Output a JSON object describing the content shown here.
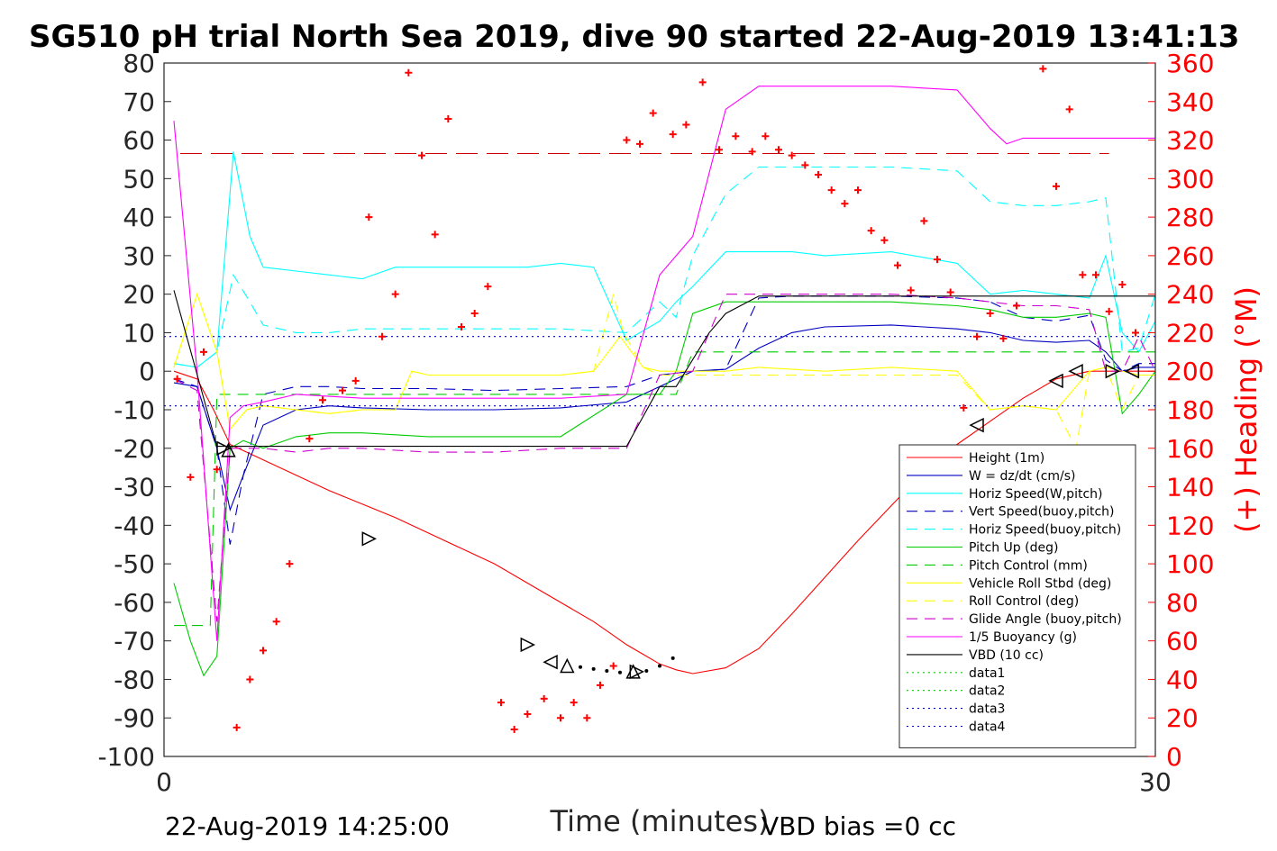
{
  "chart_data": {
    "type": "line",
    "title": "SG510 pH trial North Sea 2019, dive 90 started 22-Aug-2019 13:41:13",
    "xlabel": "Time (minutes)",
    "ylabel": "",
    "ylabel_right": "(+) Heading (°M)",
    "xlim": [
      0,
      30
    ],
    "ylim": [
      -100,
      80
    ],
    "ylim_right": [
      0,
      360
    ],
    "x_ticks": [
      "0",
      "30"
    ],
    "y_ticks": [
      "80",
      "70",
      "60",
      "50",
      "40",
      "30",
      "20",
      "10",
      "0",
      "-10",
      "-20",
      "-30",
      "-40",
      "-50",
      "-60",
      "-70",
      "-80",
      "-90",
      "-100"
    ],
    "y_ticks_right": [
      "360",
      "340",
      "320",
      "300",
      "280",
      "260",
      "240",
      "220",
      "200",
      "180",
      "160",
      "140",
      "120",
      "100",
      "80",
      "60",
      "40",
      "20",
      "0"
    ],
    "grid": false,
    "legend_position": "lower-right",
    "footer_left": "22-Aug-2019 14:25:00",
    "footer_right": "VBD bias =0 cc",
    "colors": {
      "heading": "#ff0000"
    },
    "series": [
      {
        "name": "Height (1m)",
        "color": "#ff0000",
        "style": "solid",
        "x": [
          0.3,
          1.0,
          1.5,
          2.0,
          2.5,
          3.0,
          4.0,
          5.0,
          6.0,
          7.0,
          8.0,
          9.0,
          10.0,
          11.0,
          12.0,
          13.0,
          13.5,
          14.0,
          14.5,
          15.0,
          15.5,
          16.0,
          17.0,
          18.0,
          19.0,
          20.0,
          21.0,
          22.0,
          23.0,
          24.0,
          25.0,
          26.0,
          27.0,
          28.0,
          29.0,
          30.0
        ],
        "y": [
          0,
          -2,
          -10,
          -19,
          -21,
          -23,
          -27,
          -31,
          -34.5,
          -38,
          -42,
          -46,
          -50,
          -55,
          -60,
          -65,
          -68,
          -71,
          -73.5,
          -76,
          -77.5,
          -78.5,
          -77,
          -72,
          -63,
          -53.5,
          -44,
          -35,
          -26,
          -19,
          -13,
          -7,
          -2,
          0,
          0,
          0
        ]
      },
      {
        "name": "W = dz/dt (cm/s)",
        "color": "#0000c0",
        "style": "solid",
        "x": [
          0.3,
          1.0,
          1.6,
          2.0,
          2.4,
          3.0,
          4.0,
          5.0,
          6.0,
          8.0,
          10.0,
          12.0,
          14.0,
          15.5,
          16.0,
          17.0,
          18.0,
          19.0,
          20.0,
          22.0,
          24.0,
          25.0,
          26.0,
          27.0,
          28.0,
          28.5,
          29.0,
          29.5,
          30.0
        ],
        "y": [
          -3,
          -4,
          -20,
          -36,
          -27,
          -14,
          -10,
          -9,
          -9.5,
          -10,
          -10,
          -9.5,
          -8,
          -2,
          0,
          0.5,
          6,
          10,
          11.5,
          12,
          11,
          10,
          8,
          7.5,
          8,
          5,
          0,
          1,
          1
        ]
      },
      {
        "name": "Horiz Speed(W,pitch)",
        "color": "#00ffff",
        "style": "solid",
        "x": [
          0.3,
          1.0,
          1.6,
          2.1,
          2.6,
          3.0,
          4.0,
          5.0,
          6.0,
          7.0,
          8.0,
          9.0,
          10.0,
          11.0,
          12.0,
          13.0,
          14.0,
          15.0,
          15.5,
          16.0,
          17.0,
          18.0,
          19.0,
          20.0,
          22.0,
          24.0,
          25.0,
          26.0,
          27.0,
          28.0,
          28.5,
          29.0,
          29.5,
          30.0
        ],
        "y": [
          2,
          1,
          5,
          57,
          35,
          27,
          26,
          25,
          24,
          27,
          27,
          27,
          27,
          27,
          28,
          27,
          8,
          13,
          18,
          22,
          31,
          31,
          31,
          30,
          31,
          28,
          20,
          21,
          20,
          19,
          30,
          10,
          5,
          13
        ]
      },
      {
        "name": "Vert Speed(buoy,pitch)",
        "color": "#0000c0",
        "style": "dashed",
        "x": [
          0.3,
          1.0,
          1.6,
          2.0,
          2.4,
          3.0,
          4.0,
          5.0,
          6.0,
          8.0,
          10.0,
          12.0,
          14.0,
          15.0,
          16.0,
          17.0,
          18.0,
          19.0,
          20.0,
          22.0,
          24.0,
          25.0,
          26.0,
          27.0,
          28.0,
          28.5,
          29.0,
          29.5,
          30.0
        ],
        "y": [
          -2,
          -4,
          -20,
          -45,
          -27,
          -6,
          -4,
          -4,
          -4.5,
          -4.5,
          -5,
          -4.5,
          -4,
          -1,
          0,
          0.5,
          19,
          19.5,
          19.5,
          19.5,
          19,
          18,
          14,
          13,
          14.5,
          3,
          0,
          2,
          2
        ]
      },
      {
        "name": "Horiz Speed(buoy,pitch)",
        "color": "#00ffff",
        "style": "dashed",
        "x": [
          0.3,
          1.0,
          1.6,
          2.1,
          2.6,
          3.0,
          4.0,
          5.0,
          6.0,
          8.0,
          10.0,
          12.0,
          14.0,
          15.0,
          15.5,
          16.0,
          17.0,
          18.0,
          19.0,
          20.0,
          22.0,
          24.0,
          25.0,
          26.0,
          27.0,
          28.0,
          28.5,
          29.0,
          29.5,
          30.0
        ],
        "y": [
          2,
          1,
          5,
          25,
          18,
          12,
          10,
          10,
          11,
          11,
          11,
          11,
          10,
          18,
          14,
          30,
          46,
          53,
          53,
          53,
          53,
          52,
          44,
          43,
          43,
          44,
          45,
          5,
          6,
          20
        ]
      },
      {
        "name": "Pitch Up (deg)",
        "color": "#00cc00",
        "style": "solid",
        "x": [
          0.3,
          0.8,
          1.2,
          1.6,
          2.0,
          2.4,
          3.0,
          4.0,
          5.0,
          6.0,
          8.0,
          10.0,
          12.0,
          14.0,
          15.0,
          15.5,
          16.0,
          17.0,
          18.0,
          20.0,
          22.0,
          24.0,
          25.0,
          26.0,
          27.0,
          28.0,
          28.5,
          29.0,
          29.5,
          30.0
        ],
        "y": [
          -55,
          -70,
          -79,
          -74,
          -20,
          -18,
          -20,
          -17,
          -16,
          -16,
          -17,
          -17,
          -17,
          -6,
          -6,
          0,
          15,
          18,
          18,
          18,
          18,
          17,
          16,
          14,
          14,
          15,
          14,
          -11,
          -6,
          0
        ]
      },
      {
        "name": "Pitch Control (mm)",
        "color": "#00cc00",
        "style": "dashed",
        "x": [
          0.3,
          1.4,
          1.6,
          2.2,
          3.0,
          4.0,
          14.0,
          14.5,
          15.0,
          15.5,
          16.0,
          17.0,
          28.5,
          29.0,
          30.0
        ],
        "y": [
          -66,
          -66,
          -6,
          -6,
          -6,
          -6,
          -6,
          -6,
          -6,
          -6,
          5,
          5,
          5,
          5,
          5
        ]
      },
      {
        "name": "Vehicle Roll Stbd (deg)",
        "color": "#ffff00",
        "style": "solid",
        "x": [
          0.3,
          1.0,
          1.6,
          2.0,
          2.5,
          3.0,
          4.0,
          5.0,
          6.0,
          7.0,
          7.5,
          8.0,
          10.0,
          12.0,
          13.0,
          13.8,
          14.5,
          15.0,
          16.0,
          17.0,
          18.0,
          20.0,
          22.0,
          24.0,
          25.0,
          26.0,
          27.0,
          28.0,
          28.5,
          29.0,
          29.5,
          30.0
        ],
        "y": [
          1,
          20,
          5,
          -15,
          -10,
          -9,
          -10,
          -11,
          -10,
          -10,
          0,
          -1,
          -1,
          -1,
          0,
          9,
          1,
          0,
          0,
          0,
          1,
          0,
          1,
          0,
          -10,
          -9,
          -10,
          0,
          1,
          0,
          -1,
          -1
        ]
      },
      {
        "name": "Roll Control (deg)",
        "color": "#ffff00",
        "style": "dashed",
        "x": [
          0.3,
          1.0,
          1.6,
          2.0,
          2.5,
          3.0,
          5.0,
          6.0,
          7.0,
          7.5,
          8.0,
          10.0,
          12.0,
          13.0,
          13.6,
          13.9,
          14.5,
          15.0,
          16.0,
          18.0,
          20.0,
          22.0,
          24.0,
          25.0,
          26.0,
          27.0,
          27.6,
          28.0,
          28.5,
          29.0,
          29.5,
          30.0
        ],
        "y": [
          1,
          20,
          5,
          -15,
          -10,
          -9,
          -11,
          -10,
          -10,
          0,
          -1,
          -1,
          -1,
          0,
          20,
          10,
          1,
          -1,
          -1,
          -1,
          -1,
          -1,
          -1,
          -10,
          -9,
          -10,
          -20,
          0,
          1,
          -10,
          -1,
          -1
        ]
      },
      {
        "name": "Glide Angle (buoy,pitch)",
        "color": "#cc00cc",
        "style": "dashed",
        "x": [
          0.3,
          1.0,
          1.6,
          2.0,
          2.4,
          3.0,
          4.0,
          5.0,
          6.0,
          8.0,
          10.0,
          12.0,
          14.0,
          15.0,
          16.0,
          17.0,
          18.0,
          20.0,
          22.0,
          24.0,
          25.0,
          26.0,
          27.0,
          28.0,
          28.5,
          29.0,
          29.5,
          30.0
        ],
        "y": [
          -2,
          -5,
          -65,
          -20,
          -20,
          -20,
          -21,
          -20,
          -20,
          -21,
          -21,
          -20,
          -20,
          -1,
          0,
          20,
          20,
          20,
          20,
          19,
          18,
          17,
          17,
          16,
          0,
          0,
          9,
          0
        ]
      },
      {
        "name": "1/5 Buoyancy (g)",
        "color": "#ff00ff",
        "style": "solid",
        "x": [
          0.3,
          1.0,
          1.6,
          2.0,
          2.4,
          3.0,
          4.0,
          6.0,
          8.0,
          10.0,
          12.0,
          14.0,
          15.0,
          16.0,
          17.0,
          18.0,
          20.0,
          22.0,
          24.0,
          25.0,
          25.5,
          26.0,
          28.0,
          29.0,
          30.0
        ],
        "y": [
          65,
          0,
          -70,
          -12,
          -9,
          -8,
          -6,
          -7,
          -7,
          -7,
          -7,
          -6,
          25,
          35,
          68,
          74,
          74,
          74,
          73,
          63,
          59,
          60.5,
          60.5,
          60.5,
          60.5
        ]
      },
      {
        "name": "VBD (10 cc)",
        "color": "#000000",
        "style": "solid",
        "x": [
          0.3,
          1.6,
          2.0,
          3.0,
          12.0,
          14.0,
          15.0,
          15.5,
          16.5,
          17.0,
          18.0,
          19.0,
          20.0,
          25.0,
          30.0
        ],
        "y": [
          21,
          -19.5,
          -19.5,
          -19.5,
          -19.5,
          -19.5,
          -4,
          -4,
          10,
          15,
          19.5,
          19.5,
          19.5,
          19.5,
          19.5
        ]
      },
      {
        "name": "data1",
        "color": "#00cc00",
        "style": "dotted",
        "x": [],
        "y": []
      },
      {
        "name": "data2",
        "color": "#00cc00",
        "style": "dotted",
        "x": [],
        "y": []
      },
      {
        "name": "data3",
        "color": "#0000c0",
        "style": "dotted",
        "x": [
          0,
          30
        ],
        "y": [
          9,
          9
        ]
      },
      {
        "name": "data4",
        "color": "#0000c0",
        "style": "dotted",
        "x": [
          0,
          30
        ],
        "y": [
          -9,
          -9
        ]
      }
    ],
    "heading_reference": 313,
    "heading": {
      "x": [
        0.4,
        0.8,
        1.2,
        1.6,
        2.2,
        2.6,
        3.0,
        3.4,
        3.8,
        4.4,
        4.8,
        5.4,
        5.8,
        6.2,
        6.6,
        7.0,
        7.4,
        7.8,
        8.2,
        8.6,
        9.0,
        9.4,
        9.8,
        10.2,
        10.6,
        11.0,
        11.5,
        12.0,
        12.4,
        12.8,
        13.2,
        13.6,
        14.0,
        14.4,
        14.8,
        15.4,
        15.8,
        16.3,
        16.8,
        17.3,
        17.8,
        18.2,
        18.6,
        19.0,
        19.4,
        19.8,
        20.2,
        20.6,
        21.0,
        21.4,
        21.8,
        22.2,
        22.6,
        23.0,
        23.4,
        23.8,
        24.2,
        24.6,
        25.0,
        25.4,
        25.8,
        26.2,
        26.6,
        27.0,
        27.4,
        27.8,
        28.2,
        28.6,
        29.0,
        29.4
      ],
      "y": [
        196,
        145,
        210,
        149,
        15,
        40,
        55,
        70,
        100,
        165,
        185,
        190,
        195,
        280,
        218,
        240,
        355,
        312,
        271,
        331,
        223,
        230,
        244,
        28,
        14,
        22,
        30,
        20,
        28,
        20,
        37,
        47,
        320,
        318,
        334,
        323,
        328,
        350,
        315,
        322,
        314,
        322,
        315,
        312,
        307,
        302,
        294,
        287,
        294,
        273,
        268,
        255,
        242,
        278,
        258,
        241,
        181,
        218,
        230,
        217,
        234,
        7,
        357,
        296,
        336,
        250,
        250,
        231,
        245,
        220
      ]
    },
    "triangle_markers": [
      {
        "x": 1.8,
        "y": -20,
        "dir": "right"
      },
      {
        "x": 1.95,
        "y": -20.5,
        "dir": "up"
      },
      {
        "x": 6.2,
        "y": -43.5,
        "dir": "right"
      },
      {
        "x": 11.0,
        "y": -71,
        "dir": "right"
      },
      {
        "x": 11.7,
        "y": -75.5,
        "dir": "left"
      },
      {
        "x": 12.2,
        "y": -76.5,
        "dir": "up"
      },
      {
        "x": 14.2,
        "y": -78,
        "dir": "up"
      },
      {
        "x": 14.3,
        "y": -78,
        "dir": "right"
      },
      {
        "x": 24.6,
        "y": -14,
        "dir": "left"
      },
      {
        "x": 27.0,
        "y": -2.5,
        "dir": "left"
      },
      {
        "x": 27.6,
        "y": 0,
        "dir": "left"
      },
      {
        "x": 28.7,
        "y": 0,
        "dir": "right"
      },
      {
        "x": 29.3,
        "y": 0,
        "dir": "left"
      }
    ],
    "dot_markers": {
      "x": [
        12.6,
        13.0,
        13.4,
        13.8,
        14.6,
        15.0,
        15.4
      ],
      "y": [
        -76.8,
        -77.3,
        -77.8,
        -78.2,
        -77.8,
        -76.5,
        -74.5
      ]
    }
  }
}
